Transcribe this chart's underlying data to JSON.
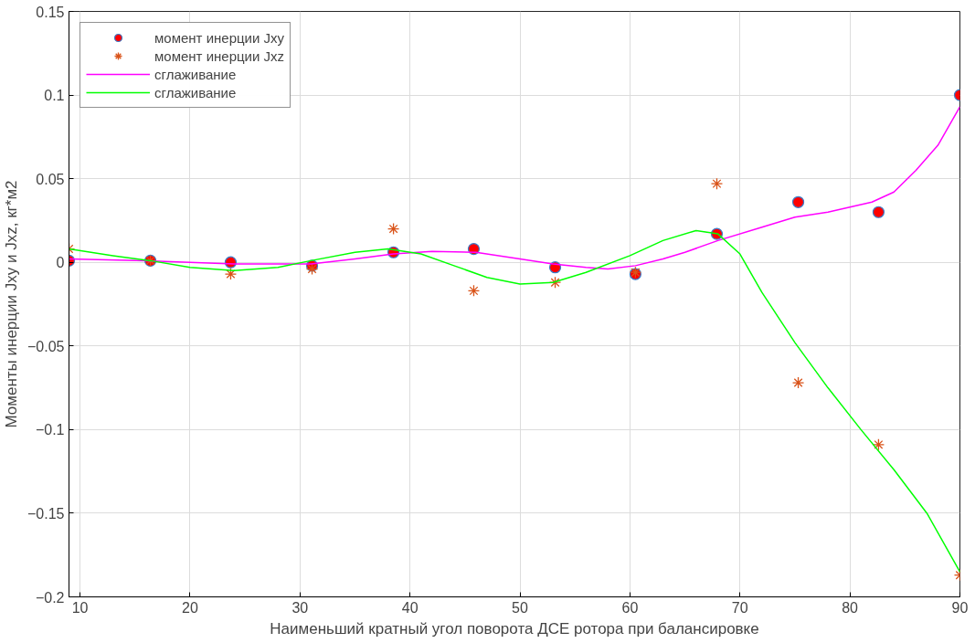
{
  "chart_data": {
    "type": "scatter",
    "xlabel": "Наименьший кратный угол поворота ДСЕ ротора при балансировке",
    "ylabel": "Моменты инерции Jxy и Jxz, кг*м2",
    "x": [
      9,
      16.4,
      23.7,
      31.1,
      38.5,
      45.8,
      53.2,
      60.5,
      67.9,
      75.3,
      82.6,
      90
    ],
    "series": [
      {
        "name": "момент инерции Jxy",
        "marker": "circle",
        "color": "#ff0000",
        "values": [
          0.001,
          0.001,
          0,
          -0.002,
          0.006,
          0.008,
          -0.003,
          -0.007,
          0.017,
          0.036,
          0.03,
          0.1
        ]
      },
      {
        "name": "момент инерции Jxz",
        "marker": "cross",
        "color": "#d95319",
        "values": [
          0.008,
          0.001,
          -0.007,
          -0.004,
          0.02,
          -0.017,
          -0.012,
          -0.006,
          0.047,
          -0.072,
          -0.109,
          -0.187
        ]
      },
      {
        "name": "сглаживание",
        "type": "line",
        "marker": "none",
        "color": "#ff00ff",
        "x": [
          9,
          16,
          24,
          31,
          35,
          38.5,
          42,
          46,
          50,
          53,
          56,
          58,
          60.5,
          63,
          65,
          68,
          72,
          75,
          78,
          82,
          84,
          86,
          88,
          90
        ],
        "values": [
          0.002,
          0.001,
          -0.001,
          -0.001,
          0.002,
          0.005,
          0.0065,
          0.006,
          0.002,
          -0.001,
          -0.003,
          -0.004,
          -0.002,
          0.002,
          0.006,
          0.013,
          0.021,
          0.027,
          0.03,
          0.036,
          0.042,
          0.055,
          0.07,
          0.093
        ]
      },
      {
        "name": "сглаживание",
        "type": "line",
        "marker": "none",
        "color": "#00ff00",
        "x": [
          9,
          13,
          16.4,
          20,
          24,
          28,
          31,
          35,
          38,
          41,
          44,
          47,
          50,
          53,
          56,
          60,
          63,
          66,
          68,
          70,
          72,
          75,
          78,
          81,
          84,
          87,
          90
        ],
        "values": [
          0.008,
          0.004,
          0.001,
          -0.003,
          -0.005,
          -0.003,
          0.001,
          0.006,
          0.008,
          0.005,
          -0.002,
          -0.009,
          -0.013,
          -0.012,
          -0.006,
          0.004,
          0.013,
          0.019,
          0.017,
          0.005,
          -0.018,
          -0.048,
          -0.075,
          -0.1,
          -0.124,
          -0.15,
          -0.185
        ]
      }
    ],
    "xlim": [
      9,
      90
    ],
    "ylim": [
      -0.2,
      0.15
    ],
    "xticks": [
      10,
      20,
      30,
      40,
      50,
      60,
      70,
      80,
      90
    ],
    "yticks": [
      -0.2,
      -0.15,
      -0.1,
      -0.05,
      {
        "value": 0,
        "label": "0"
      },
      0.05,
      0.1,
      0.15
    ],
    "grid": true,
    "legend": "top left"
  }
}
